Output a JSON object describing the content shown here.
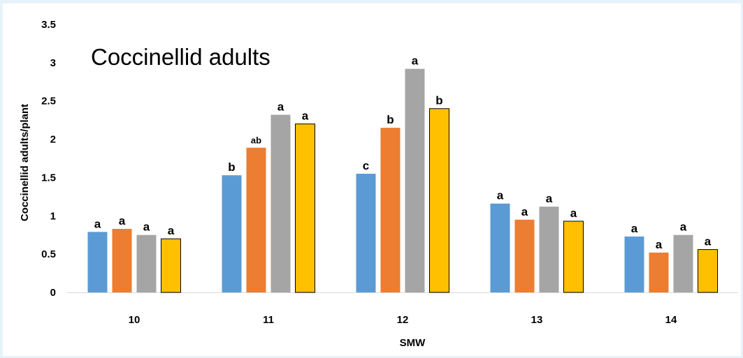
{
  "chart_data": {
    "type": "bar",
    "title": "Coccinellid adults",
    "xlabel": "SMW",
    "ylabel": "Coccinellid adults/plant",
    "ylim": [
      0,
      3.5
    ],
    "yticks": [
      "0",
      "0.5",
      "1",
      "1.5",
      "2",
      "2.5",
      "3",
      "3.5"
    ],
    "grid": false,
    "legend": "none",
    "categories": [
      "10",
      "11",
      "12",
      "13",
      "14"
    ],
    "series": [
      {
        "color": "#5b9bd5",
        "values": [
          0.79,
          1.53,
          1.55,
          1.16,
          0.73
        ],
        "labels": [
          "a",
          "b",
          "c",
          "a",
          "a"
        ]
      },
      {
        "color": "#ed7d31",
        "values": [
          0.83,
          1.89,
          2.15,
          0.95,
          0.52
        ],
        "labels": [
          "a",
          "ab",
          "b",
          "a",
          "a"
        ]
      },
      {
        "color": "#a5a5a5",
        "values": [
          0.75,
          2.32,
          2.92,
          1.12,
          0.75
        ],
        "labels": [
          "a",
          "a",
          "a",
          "a",
          "a"
        ]
      },
      {
        "color": "#ffc000",
        "values": [
          0.7,
          2.2,
          2.4,
          0.93,
          0.56
        ],
        "labels": [
          "a",
          "a",
          "b",
          "a",
          "a"
        ]
      }
    ]
  }
}
